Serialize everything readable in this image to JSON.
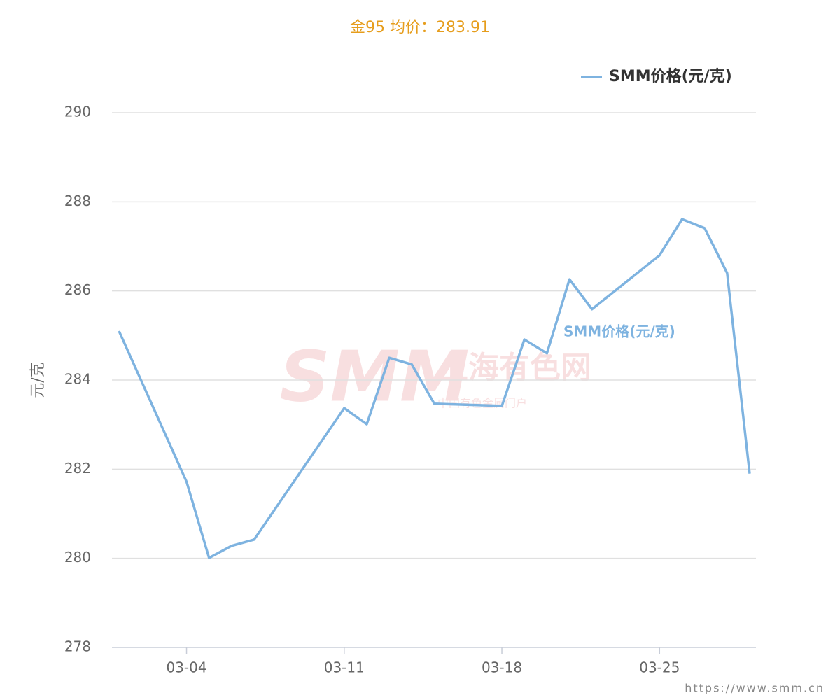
{
  "chart_data": {
    "type": "line",
    "title": "金95 均价：283.91",
    "y_label": "元/克",
    "x": [
      "03-01",
      "03-04",
      "03-05",
      "03-06",
      "03-07",
      "03-11",
      "03-12",
      "03-13",
      "03-14",
      "03-15",
      "03-18",
      "03-19",
      "03-20",
      "03-21",
      "03-22",
      "03-25",
      "03-26",
      "03-27",
      "03-28",
      "03-29"
    ],
    "series": [
      {
        "name": "SMM价格(元/克)",
        "color": "#7eb3e0",
        "values": [
          285.1,
          281.72,
          280.01,
          280.28,
          280.42,
          283.37,
          283.01,
          284.5,
          284.35,
          283.47,
          283.42,
          284.91,
          284.6,
          286.26,
          285.59,
          286.8,
          287.61,
          287.41,
          286.4,
          281.9
        ]
      }
    ],
    "ylim": [
      278,
      290
    ],
    "yticks": [
      278,
      280,
      282,
      284,
      286,
      288,
      290
    ],
    "xticks": [
      "03-04",
      "03-11",
      "03-18",
      "03-25"
    ],
    "grid": true,
    "legend": "top-right",
    "annotation": "SMM价格(元/克)",
    "watermark": {
      "logo": "SMM",
      "name": "上海有色网",
      "tagline": "中国有色金属门户"
    },
    "footer": "https://www.smm.cn"
  }
}
